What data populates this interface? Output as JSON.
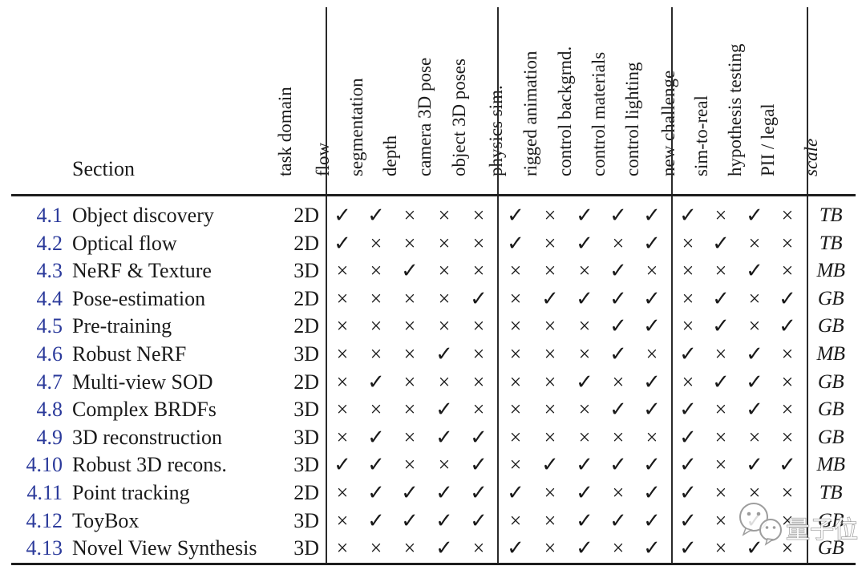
{
  "table": {
    "section_header": "Section",
    "columns": [
      "task domain",
      "flow",
      "segmentation",
      "depth",
      "camera 3D pose",
      "object 3D poses",
      "physics sim.",
      "rigged animation",
      "control backgrnd.",
      "control materials",
      "control lighting",
      "new challenge",
      "sim-to-real",
      "hypothesis testing",
      "PII / legal",
      "scale"
    ],
    "mark_columns": [
      "flow",
      "segmentation",
      "depth",
      "camera 3D pose",
      "object 3D poses",
      "physics sim.",
      "rigged animation",
      "control backgrnd.",
      "control materials",
      "control lighting",
      "new challenge",
      "sim-to-real",
      "hypothesis testing",
      "PII / legal"
    ],
    "rows": [
      {
        "id": "4.1",
        "title": "Object discovery",
        "domain": "2D",
        "marks": [
          "✓",
          "✓",
          "×",
          "×",
          "×",
          "✓",
          "×",
          "✓",
          "✓",
          "✓",
          "✓",
          "×",
          "✓",
          "×"
        ],
        "scale": "TB"
      },
      {
        "id": "4.2",
        "title": "Optical flow",
        "domain": "2D",
        "marks": [
          "✓",
          "×",
          "×",
          "×",
          "×",
          "✓",
          "×",
          "✓",
          "×",
          "✓",
          "×",
          "✓",
          "×",
          "×"
        ],
        "scale": "TB"
      },
      {
        "id": "4.3",
        "title": "NeRF & Texture",
        "domain": "3D",
        "marks": [
          "×",
          "×",
          "✓",
          "×",
          "×",
          "×",
          "×",
          "×",
          "✓",
          "×",
          "×",
          "×",
          "✓",
          "×"
        ],
        "scale": "MB"
      },
      {
        "id": "4.4",
        "title": "Pose-estimation",
        "domain": "2D",
        "marks": [
          "×",
          "×",
          "×",
          "×",
          "✓",
          "×",
          "✓",
          "✓",
          "✓",
          "✓",
          "×",
          "✓",
          "×",
          "✓"
        ],
        "scale": "GB"
      },
      {
        "id": "4.5",
        "title": "Pre-training",
        "domain": "2D",
        "marks": [
          "×",
          "×",
          "×",
          "×",
          "×",
          "×",
          "×",
          "×",
          "✓",
          "✓",
          "×",
          "✓",
          "×",
          "✓"
        ],
        "scale": "GB"
      },
      {
        "id": "4.6",
        "title": "Robust NeRF",
        "domain": "3D",
        "marks": [
          "×",
          "×",
          "×",
          "✓",
          "×",
          "×",
          "×",
          "×",
          "✓",
          "×",
          "✓",
          "×",
          "✓",
          "×"
        ],
        "scale": "MB"
      },
      {
        "id": "4.7",
        "title": "Multi-view SOD",
        "domain": "2D",
        "marks": [
          "×",
          "✓",
          "×",
          "×",
          "×",
          "×",
          "×",
          "✓",
          "×",
          "✓",
          "×",
          "✓",
          "✓",
          "×"
        ],
        "scale": "GB"
      },
      {
        "id": "4.8",
        "title": "Complex BRDFs",
        "domain": "3D",
        "marks": [
          "×",
          "×",
          "×",
          "✓",
          "×",
          "×",
          "×",
          "×",
          "✓",
          "✓",
          "✓",
          "×",
          "✓",
          "×"
        ],
        "scale": "GB"
      },
      {
        "id": "4.9",
        "title": "3D reconstruction",
        "domain": "3D",
        "marks": [
          "×",
          "✓",
          "×",
          "✓",
          "✓",
          "×",
          "×",
          "×",
          "×",
          "×",
          "✓",
          "×",
          "×",
          "×"
        ],
        "scale": "GB"
      },
      {
        "id": "4.10",
        "title": "Robust 3D recons.",
        "domain": "3D",
        "marks": [
          "✓",
          "✓",
          "×",
          "×",
          "✓",
          "×",
          "✓",
          "✓",
          "✓",
          "✓",
          "✓",
          "×",
          "✓",
          "✓"
        ],
        "scale": "MB"
      },
      {
        "id": "4.11",
        "title": "Point tracking",
        "domain": "2D",
        "marks": [
          "×",
          "✓",
          "✓",
          "✓",
          "✓",
          "✓",
          "×",
          "✓",
          "×",
          "✓",
          "✓",
          "×",
          "×",
          "×"
        ],
        "scale": "TB"
      },
      {
        "id": "4.12",
        "title": "ToyBox",
        "domain": "3D",
        "marks": [
          "×",
          "✓",
          "✓",
          "✓",
          "✓",
          "×",
          "×",
          "✓",
          "✓",
          "✓",
          "✓",
          "×",
          "✓",
          "×"
        ],
        "scale": "GB"
      },
      {
        "id": "4.13",
        "title": "Novel View Synthesis",
        "domain": "3D",
        "marks": [
          "×",
          "×",
          "×",
          "✓",
          "×",
          "✓",
          "×",
          "✓",
          "×",
          "✓",
          "✓",
          "×",
          "✓",
          "×"
        ],
        "scale": "GB"
      }
    ],
    "glyphs": {
      "check": "✓",
      "cross": "×"
    }
  },
  "watermark": {
    "text": "量子位",
    "icon": "wechat-bubbles"
  },
  "colors": {
    "link_blue": "#2b3a9b",
    "text": "#1a1a1a",
    "rule": "#1e1e1e"
  }
}
